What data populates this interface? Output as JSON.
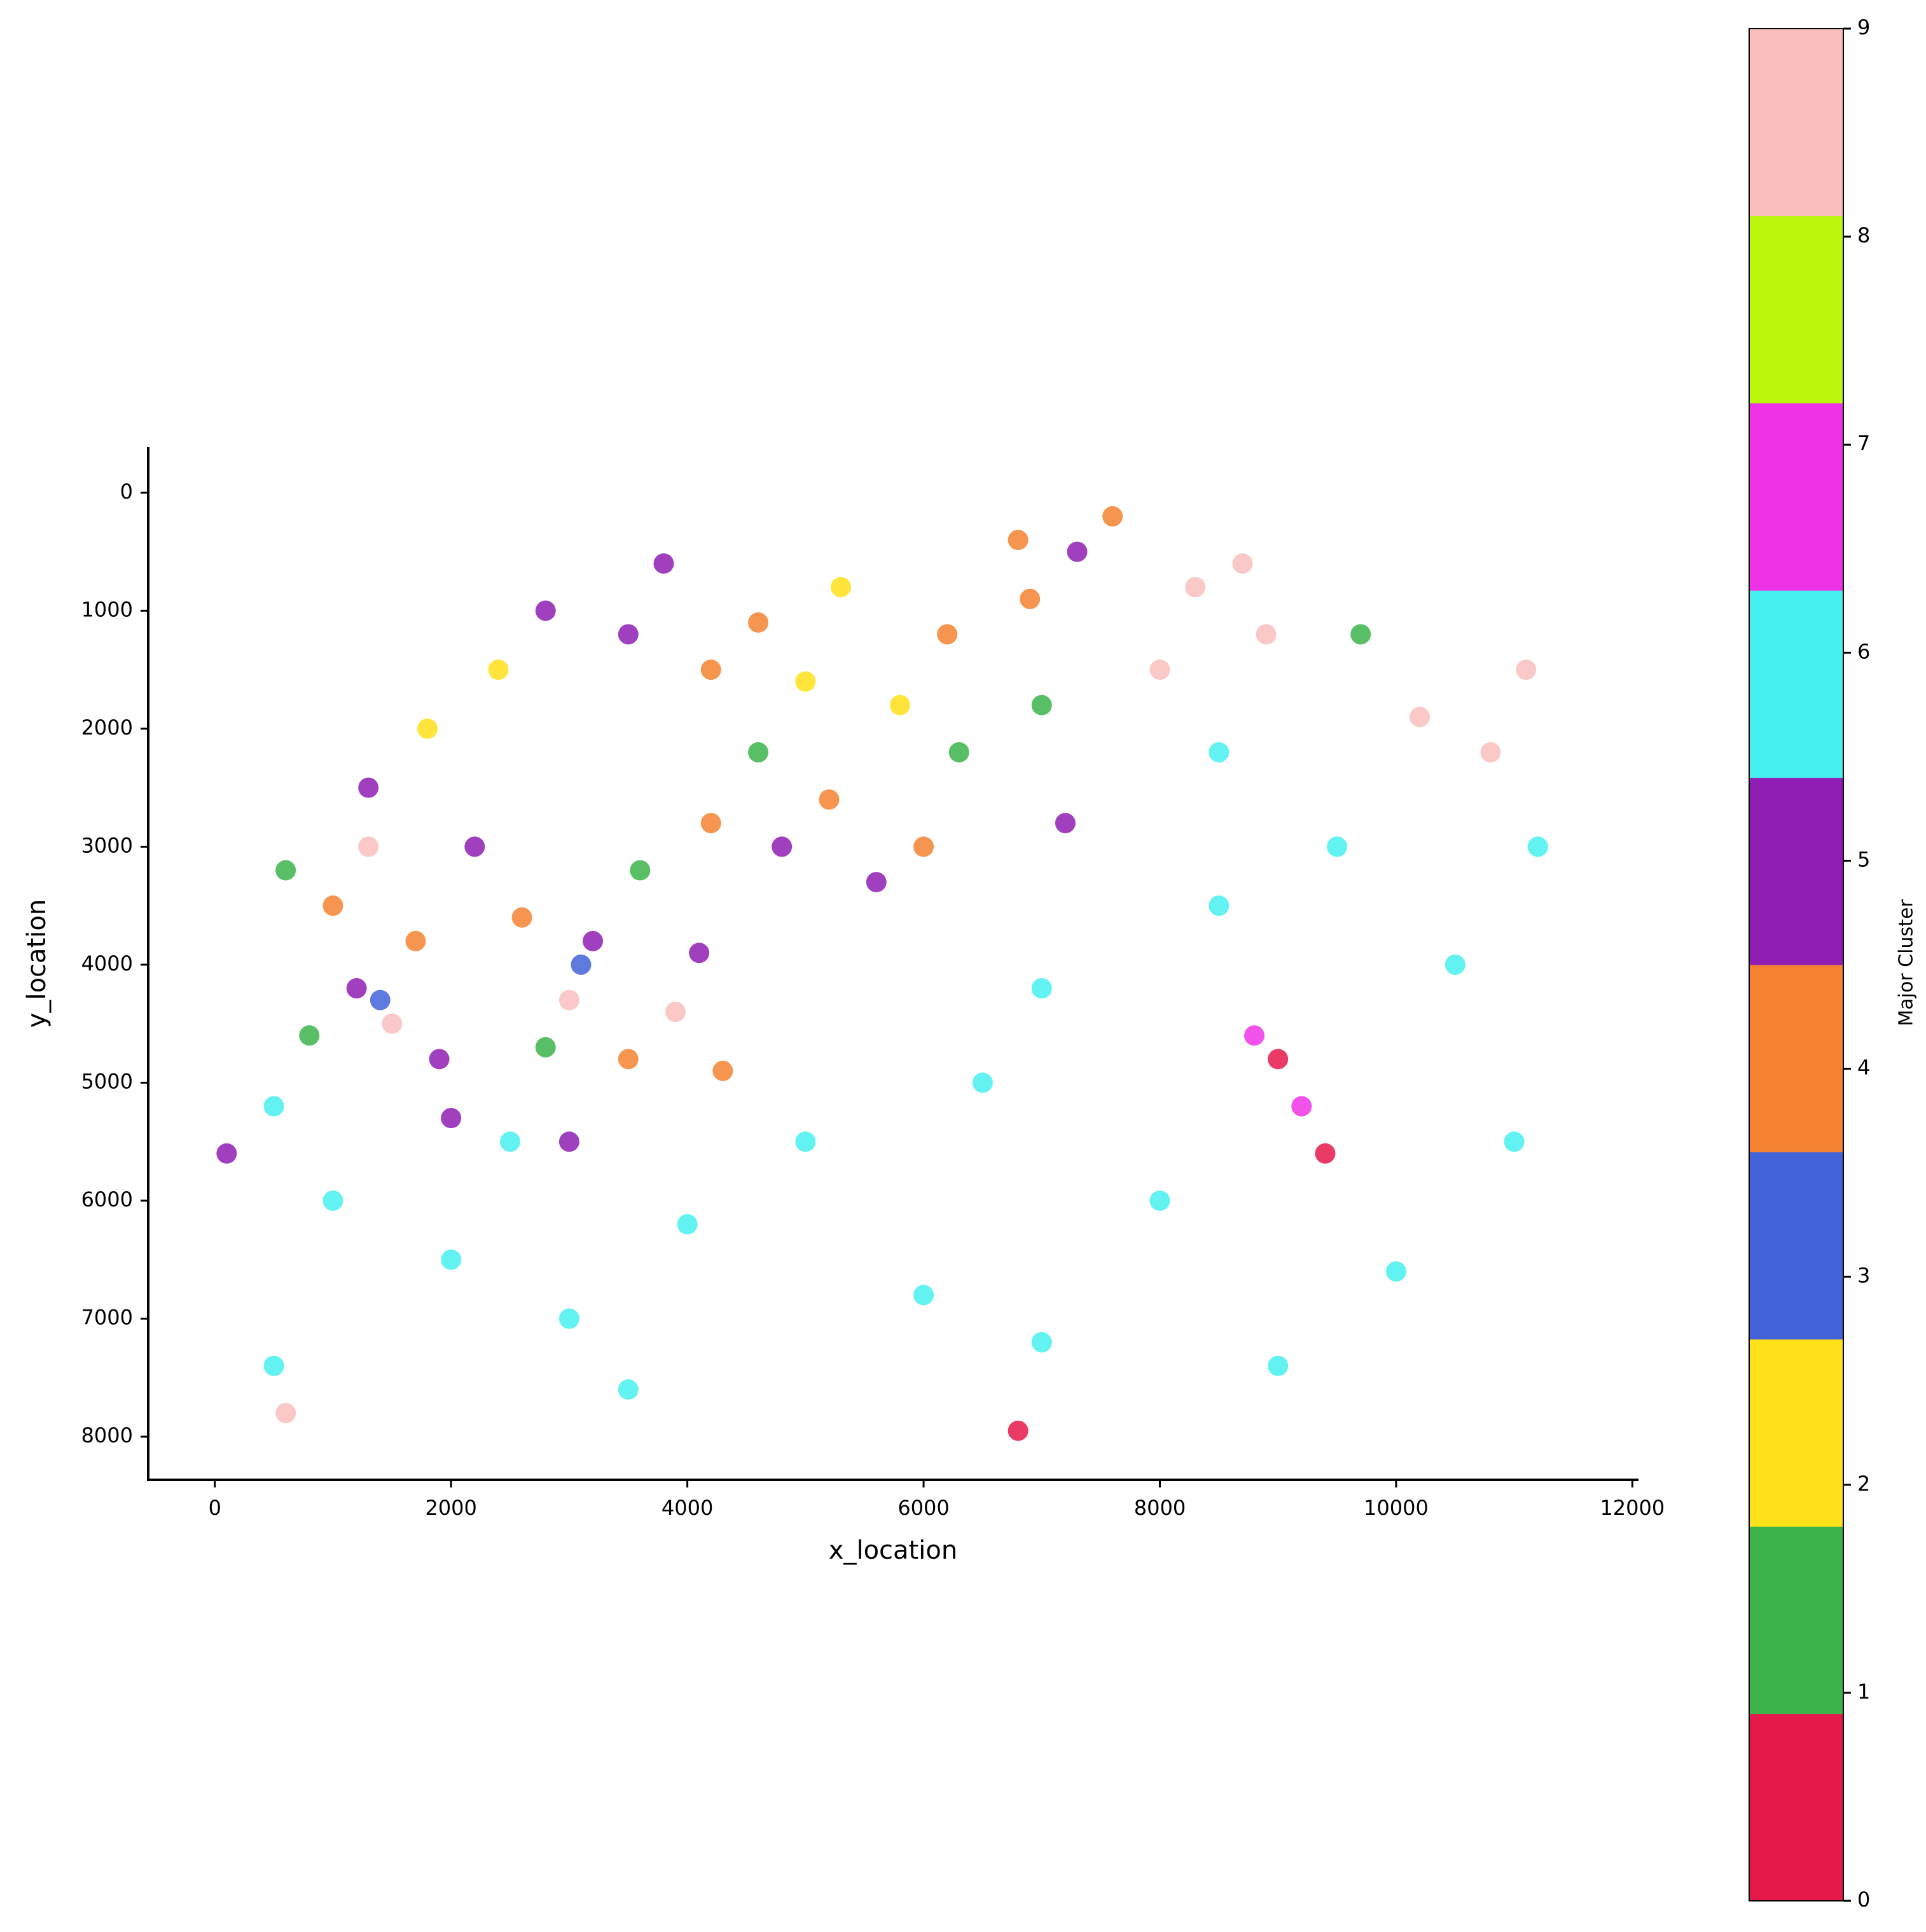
{
  "chart_data": {
    "type": "scatter",
    "x_label": "x_location",
    "y_label": "y_location",
    "xlim": [
      -564,
      12052
    ],
    "ylim": [
      8366,
      -387
    ],
    "xticks": [
      0,
      2000,
      4000,
      6000,
      8000,
      10000,
      12000
    ],
    "yticks": [
      0,
      1000,
      2000,
      3000,
      4000,
      5000,
      6000,
      7000,
      8000
    ],
    "colorbar_label": "Major Cluster",
    "clim": [
      0,
      9
    ],
    "colorbar_ticks": [
      0,
      1,
      2,
      3,
      4,
      5,
      6,
      7,
      8,
      9
    ],
    "colors": [
      "#e6194b",
      "#3cb44b",
      "#ffe119",
      "#4363d8",
      "#f58231",
      "#911eb4",
      "#46f0f0",
      "#f032e6",
      "#bcf60c",
      "#fabebe"
    ],
    "x": [
      1000,
      1200,
      800,
      1500,
      1700,
      600,
      1900,
      1300,
      2200,
      2600,
      3000,
      3200,
      2800,
      3500,
      3900,
      4100,
      4300,
      3600,
      4200,
      4800,
      4600,
      5200,
      5600,
      6000,
      6300,
      5800,
      5000,
      4200,
      3500,
      2800,
      2400,
      1800,
      1300,
      6200,
      6800,
      7300,
      7000,
      7200,
      6900,
      5300,
      7600,
      4600,
      3800,
      8300,
      8700,
      8900,
      10200,
      10800,
      11100,
      8000,
      9700,
      100,
      8800,
      9200,
      9000,
      9400,
      1000,
      2000,
      3000,
      4000,
      5000,
      6000,
      7000,
      7000,
      8000,
      8500,
      9500,
      10500,
      11000,
      10000,
      9000,
      8500,
      500,
      3500,
      6500,
      11200,
      2500,
      500,
      2000,
      3000,
      1400,
      3100,
      600,
      6800
    ],
    "y": [
      3500,
      4200,
      4600,
      4500,
      3800,
      3200,
      4800,
      3000,
      3000,
      3600,
      4300,
      3800,
      4700,
      4800,
      4400,
      3900,
      4900,
      3200,
      2800,
      3000,
      2200,
      2600,
      3300,
      3000,
      2200,
      1800,
      1600,
      1500,
      1200,
      1000,
      1500,
      2000,
      2500,
      1200,
      400,
      500,
      1800,
      2800,
      900,
      800,
      200,
      1100,
      600,
      800,
      600,
      1200,
      1900,
      2200,
      1500,
      1500,
      1200,
      5600,
      4600,
      5200,
      4800,
      5600,
      6000,
      6500,
      7000,
      6200,
      5500,
      6800,
      4200,
      7200,
      6000,
      3500,
      3000,
      4000,
      5500,
      6600,
      7400,
      2200,
      7400,
      7600,
      5000,
      3000,
      5500,
      5200,
      5300,
      5500,
      4300,
      4000,
      7800,
      7950
    ],
    "cluster": [
      4,
      5,
      1,
      9,
      4,
      1,
      5,
      9,
      5,
      4,
      9,
      5,
      1,
      4,
      9,
      5,
      4,
      1,
      4,
      5,
      1,
      4,
      5,
      4,
      1,
      2,
      2,
      4,
      5,
      5,
      2,
      2,
      5,
      4,
      4,
      5,
      1,
      5,
      4,
      2,
      4,
      4,
      5,
      9,
      9,
      9,
      9,
      9,
      9,
      9,
      1,
      5,
      7,
      7,
      0,
      0,
      6,
      6,
      6,
      6,
      6,
      6,
      6,
      6,
      6,
      6,
      6,
      6,
      6,
      6,
      6,
      6,
      6,
      6,
      6,
      6,
      6,
      6,
      5,
      5,
      3,
      3,
      9,
      0
    ]
  }
}
